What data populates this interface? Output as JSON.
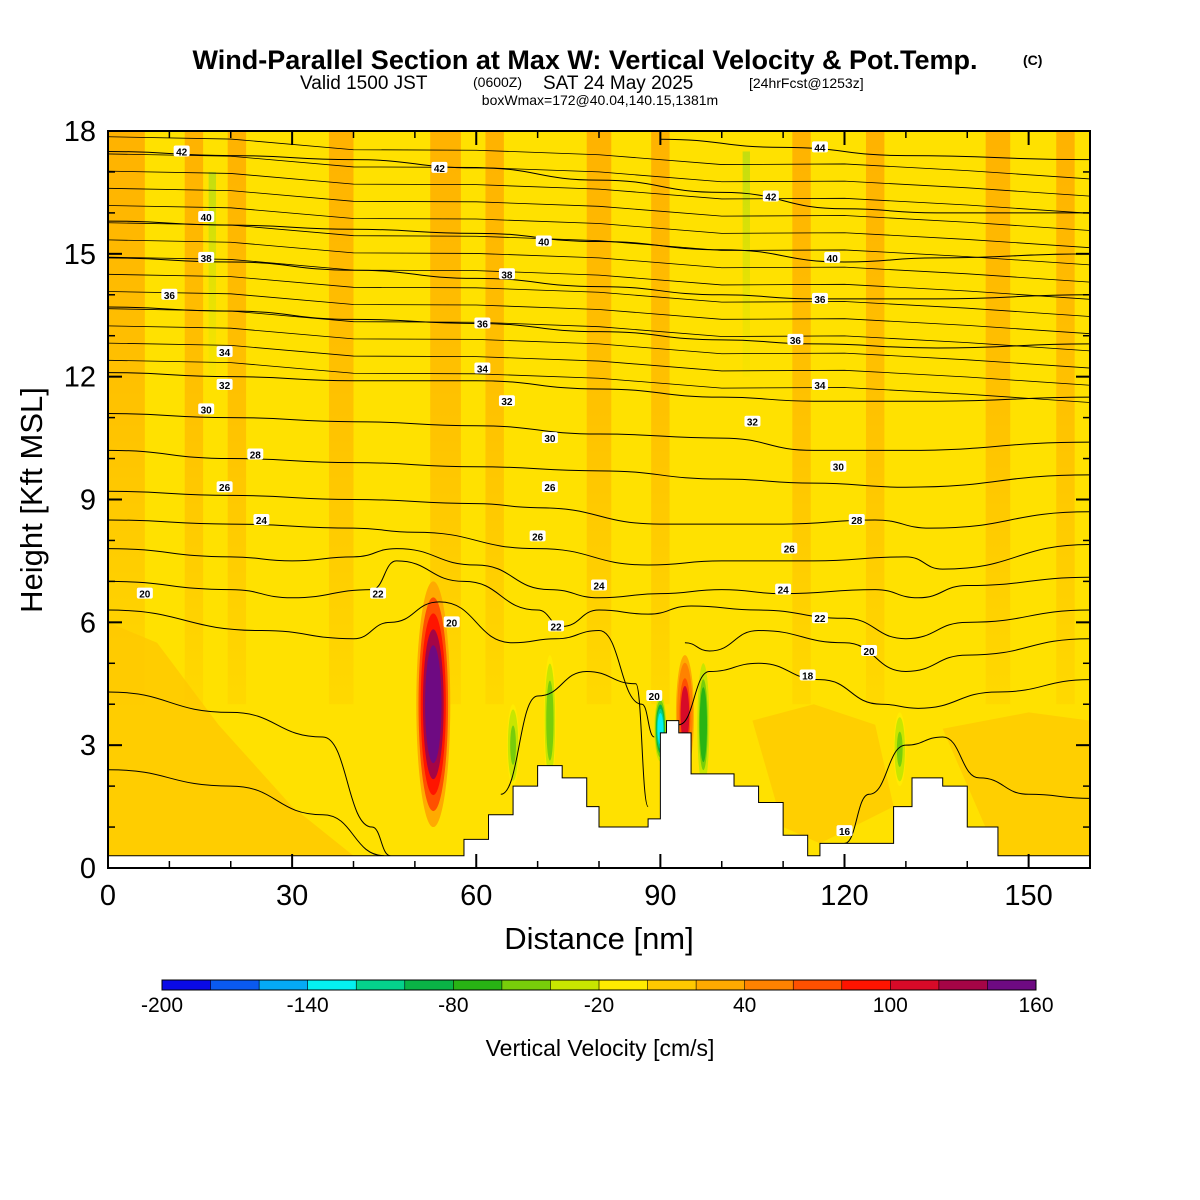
{
  "title": {
    "main": "Wind-Parallel Section at Max W: Vertical Velocity & Pot.Temp.",
    "tag": "(C)",
    "valid": "Valid 1500 JST",
    "zulu": "(0600Z)",
    "date": "SAT 24 May 2025",
    "forecast": "[24hrFcst@1253z]",
    "box": "boxWmax=172@40.04,140.15,1381m"
  },
  "colorbar": {
    "title": "Vertical Velocity [cm/s]",
    "labels": [
      "-200",
      "-140",
      "-80",
      "-20",
      "40",
      "100",
      "160"
    ],
    "colors": [
      "#0a0ae6",
      "#0a5af0",
      "#05aaf5",
      "#05f0f0",
      "#05d28c",
      "#0ab446",
      "#28b414",
      "#78cd0a",
      "#c8e600",
      "#ffeb00",
      "#ffc800",
      "#ffaa00",
      "#ff8200",
      "#ff5000",
      "#ff1400",
      "#d70a28",
      "#a50546",
      "#6e0a82"
    ]
  },
  "chart_data": {
    "type": "heatmap",
    "title": "Wind-Parallel Section at Max W: Vertical Velocity & Pot.Temp.",
    "xlabel": "Distance [nm]",
    "ylabel": "Height [Kft MSL]",
    "xlim": [
      0,
      160
    ],
    "ylim": [
      0,
      18
    ],
    "xticks": [
      0,
      30,
      60,
      90,
      120,
      150
    ],
    "yticks": [
      0,
      3,
      6,
      9,
      12,
      15,
      18
    ],
    "fill_variable": "Vertical Velocity [cm/s]",
    "fill_range": [
      -200,
      160
    ],
    "contour_variable": "Potential Temperature (C)",
    "vv_features": [
      {
        "x": 53,
        "y_bottom": 1.0,
        "y_top": 7.0,
        "peak": 172,
        "sign": "updraft"
      },
      {
        "x": 94,
        "y_bottom": 2.3,
        "y_top": 5.2,
        "peak": 100,
        "sign": "updraft"
      },
      {
        "x": 90,
        "y_bottom": 2.6,
        "y_top": 4.2,
        "peak": -140,
        "sign": "downdraft"
      },
      {
        "x": 97,
        "y_bottom": 2.0,
        "y_top": 5.0,
        "peak": -80,
        "sign": "downdraft"
      },
      {
        "x": 72,
        "y_bottom": 2.0,
        "y_top": 5.2,
        "peak": -60,
        "sign": "downdraft"
      },
      {
        "x": 66,
        "y_bottom": 2.0,
        "y_top": 4.0,
        "peak": -50,
        "sign": "downdraft"
      },
      {
        "x": 129,
        "y_bottom": 2.0,
        "y_top": 3.8,
        "peak": -50,
        "sign": "downdraft"
      }
    ],
    "terrain": [
      {
        "x": 0,
        "height": 0.3
      },
      {
        "x": 40,
        "height": 0.3
      },
      {
        "x": 53,
        "height": 0.3
      },
      {
        "x": 58,
        "height": 0.7
      },
      {
        "x": 62,
        "height": 1.3
      },
      {
        "x": 66,
        "height": 2.0
      },
      {
        "x": 70,
        "height": 2.5
      },
      {
        "x": 74,
        "height": 2.2
      },
      {
        "x": 78,
        "height": 1.5
      },
      {
        "x": 80,
        "height": 1.0
      },
      {
        "x": 86,
        "height": 1.0
      },
      {
        "x": 88,
        "height": 1.2
      },
      {
        "x": 90,
        "height": 3.3
      },
      {
        "x": 91,
        "height": 3.6
      },
      {
        "x": 93,
        "height": 3.3
      },
      {
        "x": 95,
        "height": 2.3
      },
      {
        "x": 98,
        "height": 2.3
      },
      {
        "x": 102,
        "height": 2.0
      },
      {
        "x": 106,
        "height": 1.6
      },
      {
        "x": 110,
        "height": 0.8
      },
      {
        "x": 114,
        "height": 0.3
      },
      {
        "x": 116,
        "height": 0.6
      },
      {
        "x": 124,
        "height": 0.6
      },
      {
        "x": 128,
        "height": 1.5
      },
      {
        "x": 131,
        "height": 2.2
      },
      {
        "x": 136,
        "height": 2.0
      },
      {
        "x": 140,
        "height": 1.0
      },
      {
        "x": 145,
        "height": 0.3
      },
      {
        "x": 160,
        "height": 0.3
      }
    ],
    "theta_contours": [
      {
        "level": 16,
        "points": [
          [
            0,
            2.4
          ],
          [
            20,
            2.0
          ],
          [
            35,
            1.3
          ],
          [
            45,
            0.3
          ]
        ]
      },
      {
        "level": 16,
        "points": [
          [
            120,
            0.6
          ],
          [
            124,
            1.8
          ],
          [
            130,
            3.0
          ],
          [
            136,
            3.2
          ],
          [
            142,
            2.2
          ],
          [
            150,
            1.8
          ],
          [
            160,
            1.7
          ]
        ]
      },
      {
        "level": 18,
        "points": [
          [
            0,
            4.3
          ],
          [
            20,
            3.8
          ],
          [
            35,
            3.2
          ],
          [
            43,
            1.0
          ],
          [
            46,
            0.3
          ]
        ]
      },
      {
        "level": 18,
        "points": [
          [
            64,
            1.8
          ],
          [
            70,
            4.2
          ],
          [
            78,
            4.8
          ],
          [
            86,
            4.5
          ],
          [
            88,
            1.5
          ]
        ]
      },
      {
        "level": 18,
        "points": [
          [
            93,
            3.5
          ],
          [
            98,
            4.8
          ],
          [
            106,
            5.0
          ],
          [
            116,
            4.6
          ],
          [
            126,
            4.0
          ],
          [
            132,
            3.9
          ],
          [
            145,
            4.3
          ],
          [
            160,
            4.6
          ]
        ]
      },
      {
        "level": 20,
        "points": [
          [
            0,
            6.3
          ],
          [
            25,
            5.8
          ],
          [
            40,
            5.6
          ],
          [
            46,
            6.0
          ],
          [
            54,
            6.5
          ],
          [
            66,
            5.5
          ],
          [
            73,
            5.6
          ],
          [
            80,
            5.8
          ],
          [
            87,
            4.0
          ],
          [
            89,
            3.2
          ]
        ]
      },
      {
        "level": 20,
        "points": [
          [
            94,
            5.5
          ],
          [
            98,
            5.3
          ],
          [
            106,
            5.8
          ],
          [
            120,
            5.5
          ],
          [
            130,
            4.8
          ],
          [
            140,
            5.2
          ],
          [
            160,
            5.6
          ]
        ]
      },
      {
        "level": 22,
        "points": [
          [
            0,
            7.0
          ],
          [
            20,
            6.8
          ],
          [
            30,
            6.6
          ],
          [
            43,
            6.8
          ],
          [
            47,
            7.5
          ],
          [
            58,
            7.0
          ],
          [
            70,
            6.3
          ],
          [
            74,
            5.9
          ],
          [
            80,
            6.3
          ],
          [
            88,
            6.2
          ],
          [
            95,
            6.4
          ],
          [
            106,
            6.3
          ],
          [
            120,
            6.1
          ],
          [
            130,
            5.6
          ],
          [
            140,
            6.0
          ],
          [
            160,
            6.3
          ]
        ]
      },
      {
        "level": 24,
        "points": [
          [
            0,
            7.8
          ],
          [
            20,
            7.6
          ],
          [
            30,
            7.5
          ],
          [
            40,
            7.6
          ],
          [
            47,
            7.8
          ],
          [
            60,
            7.4
          ],
          [
            72,
            6.8
          ],
          [
            80,
            6.6
          ],
          [
            90,
            6.7
          ],
          [
            100,
            6.8
          ],
          [
            110,
            6.7
          ],
          [
            125,
            6.8
          ],
          [
            132,
            6.6
          ],
          [
            140,
            6.9
          ],
          [
            160,
            7.1
          ]
        ]
      },
      {
        "level": 26,
        "points": [
          [
            0,
            8.5
          ],
          [
            20,
            8.4
          ],
          [
            40,
            8.3
          ],
          [
            50,
            8.2
          ],
          [
            70,
            7.8
          ],
          [
            88,
            7.4
          ],
          [
            100,
            7.5
          ],
          [
            115,
            7.5
          ],
          [
            130,
            7.6
          ],
          [
            136,
            7.3
          ],
          [
            160,
            7.9
          ]
        ]
      },
      {
        "level": 28,
        "points": [
          [
            0,
            9.2
          ],
          [
            20,
            9.1
          ],
          [
            40,
            9.0
          ],
          [
            60,
            8.9
          ],
          [
            70,
            8.8
          ],
          [
            90,
            8.4
          ],
          [
            110,
            8.4
          ],
          [
            125,
            8.5
          ],
          [
            134,
            8.3
          ],
          [
            160,
            8.7
          ]
        ]
      },
      {
        "level": 30,
        "points": [
          [
            0,
            10.2
          ],
          [
            20,
            10.0
          ],
          [
            40,
            9.9
          ],
          [
            60,
            9.8
          ],
          [
            80,
            9.7
          ],
          [
            100,
            9.5
          ],
          [
            115,
            9.4
          ],
          [
            130,
            9.3
          ],
          [
            160,
            9.6
          ]
        ]
      },
      {
        "level": 32,
        "points": [
          [
            0,
            11.1
          ],
          [
            20,
            11.0
          ],
          [
            40,
            10.9
          ],
          [
            60,
            10.8
          ],
          [
            80,
            10.6
          ],
          [
            100,
            10.5
          ],
          [
            115,
            10.2
          ],
          [
            130,
            10.2
          ],
          [
            160,
            10.4
          ]
        ]
      },
      {
        "level": 34,
        "points": [
          [
            0,
            12.1
          ],
          [
            20,
            12.0
          ],
          [
            40,
            11.9
          ],
          [
            60,
            11.9
          ],
          [
            80,
            11.7
          ],
          [
            100,
            11.5
          ],
          [
            115,
            11.4
          ],
          [
            135,
            11.4
          ],
          [
            160,
            11.5
          ]
        ]
      },
      {
        "level": 36,
        "points": [
          [
            0,
            13.7
          ],
          [
            20,
            13.6
          ],
          [
            40,
            13.4
          ],
          [
            60,
            13.3
          ],
          [
            80,
            13.1
          ],
          [
            100,
            12.9
          ],
          [
            115,
            12.8
          ],
          [
            135,
            12.7
          ],
          [
            160,
            12.8
          ]
        ]
      },
      {
        "level": 38,
        "points": [
          [
            0,
            14.9
          ],
          [
            20,
            14.8
          ],
          [
            40,
            14.6
          ],
          [
            60,
            14.4
          ],
          [
            80,
            14.2
          ],
          [
            100,
            14.0
          ],
          [
            115,
            13.9
          ],
          [
            135,
            13.9
          ],
          [
            160,
            14.0
          ]
        ]
      },
      {
        "level": 40,
        "points": [
          [
            0,
            15.8
          ],
          [
            20,
            15.7
          ],
          [
            40,
            15.6
          ],
          [
            60,
            15.5
          ],
          [
            80,
            15.3
          ],
          [
            100,
            15.1
          ],
          [
            120,
            14.8
          ],
          [
            135,
            14.9
          ],
          [
            160,
            15.0
          ]
        ]
      },
      {
        "level": 42,
        "points": [
          [
            0,
            17.5
          ],
          [
            20,
            17.4
          ],
          [
            40,
            17.3
          ],
          [
            60,
            17.1
          ],
          [
            80,
            16.8
          ],
          [
            100,
            16.5
          ],
          [
            120,
            16.1
          ],
          [
            135,
            16.0
          ],
          [
            160,
            16.0
          ]
        ]
      },
      {
        "level": 44,
        "points": [
          [
            90,
            17.8
          ],
          [
            110,
            17.6
          ],
          [
            130,
            17.4
          ],
          [
            160,
            17.3
          ]
        ]
      }
    ],
    "contour_labels": [
      {
        "text": "42",
        "x": 12,
        "y": 17.5
      },
      {
        "text": "42",
        "x": 54,
        "y": 17.1
      },
      {
        "text": "44",
        "x": 116,
        "y": 17.6
      },
      {
        "text": "40",
        "x": 16,
        "y": 15.9
      },
      {
        "text": "42",
        "x": 108,
        "y": 16.4
      },
      {
        "text": "40",
        "x": 71,
        "y": 15.3
      },
      {
        "text": "38",
        "x": 16,
        "y": 14.9
      },
      {
        "text": "40",
        "x": 118,
        "y": 14.9
      },
      {
        "text": "38",
        "x": 65,
        "y": 14.5
      },
      {
        "text": "36",
        "x": 10,
        "y": 14.0
      },
      {
        "text": "36",
        "x": 116,
        "y": 13.9
      },
      {
        "text": "36",
        "x": 61,
        "y": 13.3
      },
      {
        "text": "36",
        "x": 112,
        "y": 12.9
      },
      {
        "text": "34",
        "x": 19,
        "y": 12.6
      },
      {
        "text": "34",
        "x": 61,
        "y": 12.2
      },
      {
        "text": "34",
        "x": 116,
        "y": 11.8
      },
      {
        "text": "32",
        "x": 19,
        "y": 11.8
      },
      {
        "text": "32",
        "x": 65,
        "y": 11.4
      },
      {
        "text": "30",
        "x": 16,
        "y": 11.2
      },
      {
        "text": "32",
        "x": 105,
        "y": 10.9
      },
      {
        "text": "30",
        "x": 72,
        "y": 10.5
      },
      {
        "text": "28",
        "x": 24,
        "y": 10.1
      },
      {
        "text": "30",
        "x": 119,
        "y": 9.8
      },
      {
        "text": "26",
        "x": 19,
        "y": 9.3
      },
      {
        "text": "26",
        "x": 72,
        "y": 9.3
      },
      {
        "text": "28",
        "x": 122,
        "y": 8.5
      },
      {
        "text": "24",
        "x": 25,
        "y": 8.5
      },
      {
        "text": "26",
        "x": 70,
        "y": 8.1
      },
      {
        "text": "26",
        "x": 111,
        "y": 7.8
      },
      {
        "text": "24",
        "x": 80,
        "y": 6.9
      },
      {
        "text": "24",
        "x": 110,
        "y": 6.8
      },
      {
        "text": "20",
        "x": 6,
        "y": 6.7
      },
      {
        "text": "22",
        "x": 44,
        "y": 6.7
      },
      {
        "text": "20",
        "x": 56,
        "y": 6.0
      },
      {
        "text": "22",
        "x": 73,
        "y": 5.9
      },
      {
        "text": "22",
        "x": 116,
        "y": 6.1
      },
      {
        "text": "20",
        "x": 124,
        "y": 5.3
      },
      {
        "text": "18",
        "x": 114,
        "y": 4.7
      },
      {
        "text": "20",
        "x": 89,
        "y": 4.2
      },
      {
        "text": "16",
        "x": 120,
        "y": 0.9
      }
    ]
  }
}
